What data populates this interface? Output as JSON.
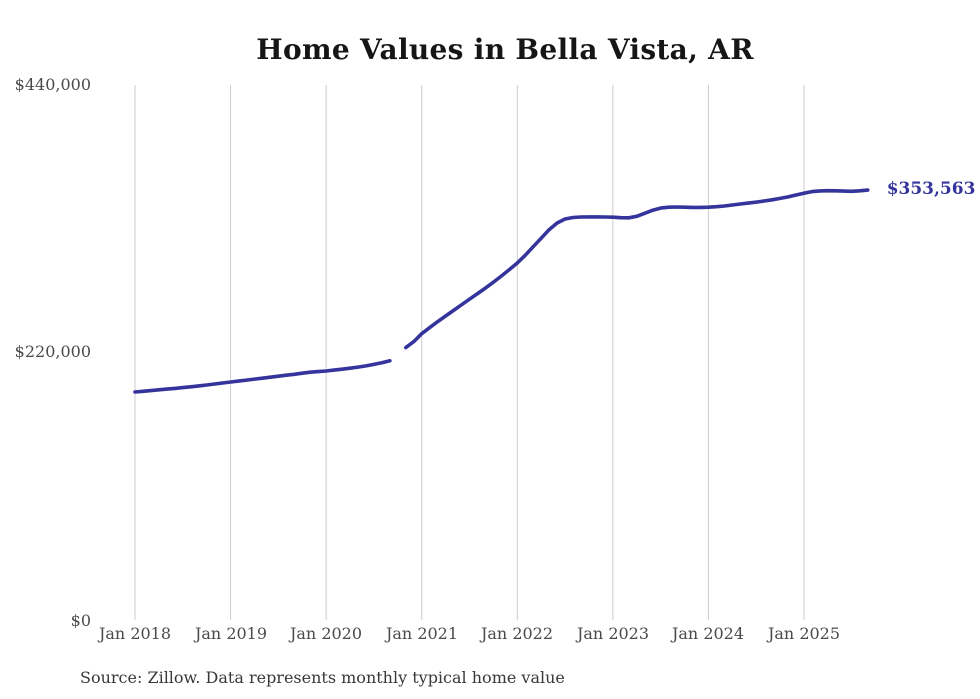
{
  "chart": {
    "title": "Home Values in Bella Vista, AR",
    "end_label": "$353,563",
    "source_note": "Source: Zillow. Data represents monthly typical home value",
    "line_color": "#34349c",
    "gridline_color": "#cccccc",
    "tick_label_color": "#4a4a4a"
  },
  "chart_data": {
    "type": "line",
    "title": "Home Values in Bella Vista, AR",
    "ylabel": "",
    "xlabel": "",
    "ylim": [
      0,
      440000
    ],
    "grid": "vertical-only",
    "legend": "none",
    "annotation": {
      "text": "$353,563",
      "at": "last-point"
    },
    "y_ticks": [
      {
        "value": 440000,
        "label": "$440,000"
      },
      {
        "value": 220000,
        "label": "$220,000"
      },
      {
        "value": 0,
        "label": "$0"
      }
    ],
    "x_ticks": [
      {
        "month": "2018-01",
        "label": "Jan 2018"
      },
      {
        "month": "2019-01",
        "label": "Jan 2019"
      },
      {
        "month": "2020-01",
        "label": "Jan 2020"
      },
      {
        "month": "2021-01",
        "label": "Jan 2021"
      },
      {
        "month": "2022-01",
        "label": "Jan 2022"
      },
      {
        "month": "2023-01",
        "label": "Jan 2023"
      },
      {
        "month": "2024-01",
        "label": "Jan 2024"
      },
      {
        "month": "2025-01",
        "label": "Jan 2025"
      }
    ],
    "series": [
      {
        "name": "Monthly typical home value",
        "points": [
          [
            "2018-01",
            187500
          ],
          [
            "2018-02",
            188100
          ],
          [
            "2018-03",
            188700
          ],
          [
            "2018-04",
            189300
          ],
          [
            "2018-05",
            189900
          ],
          [
            "2018-06",
            190500
          ],
          [
            "2018-07",
            191100
          ],
          [
            "2018-08",
            191800
          ],
          [
            "2018-09",
            192500
          ],
          [
            "2018-10",
            193300
          ],
          [
            "2018-11",
            194100
          ],
          [
            "2018-12",
            194900
          ],
          [
            "2019-01",
            195700
          ],
          [
            "2019-02",
            196500
          ],
          [
            "2019-03",
            197300
          ],
          [
            "2019-04",
            198100
          ],
          [
            "2019-05",
            198900
          ],
          [
            "2019-06",
            199700
          ],
          [
            "2019-07",
            200500
          ],
          [
            "2019-08",
            201300
          ],
          [
            "2019-09",
            202100
          ],
          [
            "2019-10",
            203000
          ],
          [
            "2019-11",
            203800
          ],
          [
            "2019-12",
            204300
          ],
          [
            "2020-01",
            204800
          ],
          [
            "2020-02",
            205500
          ],
          [
            "2020-03",
            206300
          ],
          [
            "2020-04",
            207100
          ],
          [
            "2020-05",
            208000
          ],
          [
            "2020-06",
            209000
          ],
          [
            "2020-07",
            210200
          ],
          [
            "2020-08",
            211600
          ],
          [
            "2020-09",
            213200
          ],
          [
            "2020-10",
            null
          ],
          [
            "2020-11",
            224000
          ],
          [
            "2020-12",
            229000
          ],
          [
            "2021-01",
            235500
          ],
          [
            "2021-02",
            240500
          ],
          [
            "2021-03",
            245300
          ],
          [
            "2021-04",
            250000
          ],
          [
            "2021-05",
            254600
          ],
          [
            "2021-06",
            259200
          ],
          [
            "2021-07",
            263800
          ],
          [
            "2021-08",
            268400
          ],
          [
            "2021-09",
            273000
          ],
          [
            "2021-10",
            277800
          ],
          [
            "2021-11",
            282900
          ],
          [
            "2021-12",
            288200
          ],
          [
            "2022-01",
            293600
          ],
          [
            "2022-02",
            300000
          ],
          [
            "2022-03",
            307000
          ],
          [
            "2022-04",
            314000
          ],
          [
            "2022-05",
            321000
          ],
          [
            "2022-06",
            326500
          ],
          [
            "2022-07",
            329800
          ],
          [
            "2022-08",
            331000
          ],
          [
            "2022-09",
            331400
          ],
          [
            "2022-10",
            331500
          ],
          [
            "2022-11",
            331500
          ],
          [
            "2022-12",
            331400
          ],
          [
            "2023-01",
            331300
          ],
          [
            "2023-02",
            330900
          ],
          [
            "2023-03",
            330800
          ],
          [
            "2023-04",
            332000
          ],
          [
            "2023-05",
            334500
          ],
          [
            "2023-06",
            337000
          ],
          [
            "2023-07",
            338800
          ],
          [
            "2023-08",
            339500
          ],
          [
            "2023-09",
            339700
          ],
          [
            "2023-10",
            339500
          ],
          [
            "2023-11",
            339300
          ],
          [
            "2023-12",
            339300
          ],
          [
            "2024-01",
            339500
          ],
          [
            "2024-02",
            339900
          ],
          [
            "2024-03",
            340500
          ],
          [
            "2024-04",
            341300
          ],
          [
            "2024-05",
            342100
          ],
          [
            "2024-06",
            342900
          ],
          [
            "2024-07",
            343700
          ],
          [
            "2024-08",
            344600
          ],
          [
            "2024-09",
            345600
          ],
          [
            "2024-10",
            346700
          ],
          [
            "2024-11",
            348000
          ],
          [
            "2024-12",
            349500
          ],
          [
            "2025-01",
            351000
          ],
          [
            "2025-02",
            352300
          ],
          [
            "2025-03",
            352900
          ],
          [
            "2025-04",
            353100
          ],
          [
            "2025-05",
            353000
          ],
          [
            "2025-06",
            352700
          ],
          [
            "2025-07",
            352600
          ],
          [
            "2025-08",
            353000
          ],
          [
            "2025-09",
            353563
          ]
        ]
      }
    ]
  }
}
